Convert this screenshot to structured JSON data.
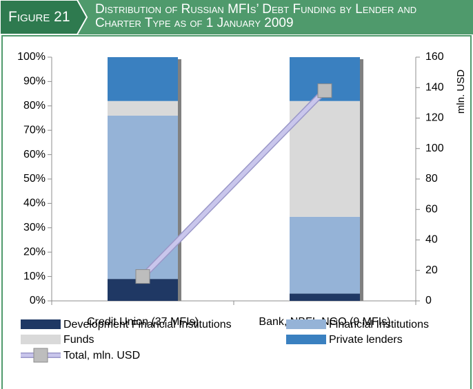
{
  "chart_data": {
    "type": "bar",
    "stacked": true,
    "figure_label": "Figure 21",
    "title": "Distribution of Russian MFIs’ Debt Funding by Lender and Charter Type as of 1 January 2009",
    "categories": [
      "Credit Union (37 MFIs)",
      "Bank, NBFI, NGO (9 MFIs)"
    ],
    "series": [
      {
        "name": "Development Financial Institutions",
        "color": "#1f3864",
        "values": [
          9,
          3
        ]
      },
      {
        "name": "Financial Institutions",
        "color": "#95b3d7",
        "values": [
          67,
          31.5
        ]
      },
      {
        "name": "Funds",
        "color": "#d9d9d9",
        "values": [
          6,
          47.5
        ]
      },
      {
        "name": "Private lenders",
        "color": "#3a80c0",
        "values": [
          18,
          18
        ]
      },
      {
        "name": "Total, mln. USD",
        "type": "line",
        "axis": "y2",
        "color": "#c9c6ec",
        "marker_color": "#bdbdbd",
        "values": [
          16,
          138
        ]
      }
    ],
    "ylim": [
      0,
      100
    ],
    "yticks": [
      {
        "value": 0,
        "label": "0%"
      },
      {
        "value": 10,
        "label": "10%"
      },
      {
        "value": 20,
        "label": "20%"
      },
      {
        "value": 30,
        "label": "30%"
      },
      {
        "value": 40,
        "label": "40%"
      },
      {
        "value": 50,
        "label": "50%"
      },
      {
        "value": 60,
        "label": "60%"
      },
      {
        "value": 70,
        "label": "70%"
      },
      {
        "value": 80,
        "label": "80%"
      },
      {
        "value": 90,
        "label": "90%"
      },
      {
        "value": 100,
        "label": "100%"
      }
    ],
    "y2lim": [
      0,
      160
    ],
    "y2ticks": [
      0,
      20,
      40,
      60,
      80,
      100,
      120,
      140,
      160
    ],
    "y2label": "mln. USD",
    "grid": false
  }
}
